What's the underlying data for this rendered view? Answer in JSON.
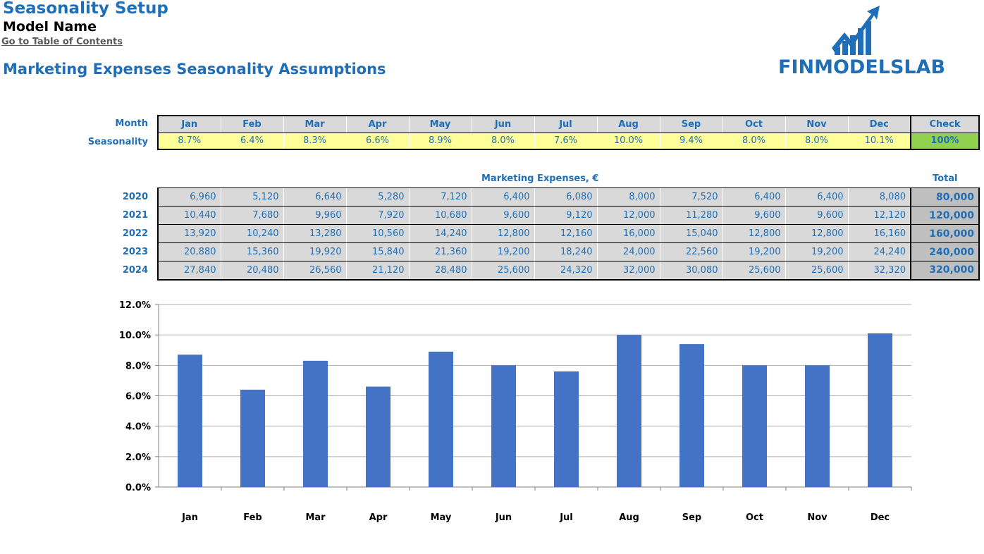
{
  "header": {
    "title": "Seasonality Setup",
    "model_name": "Model Name",
    "toc_link": "Go to Table of Contents",
    "section_title": "Marketing Expenses Seasonality Assumptions",
    "logo_text": "FINMODELSLAB"
  },
  "seasonality_table": {
    "month_label": "Month",
    "seasonality_label": "Seasonality",
    "months": [
      "Jan",
      "Feb",
      "Mar",
      "Apr",
      "May",
      "Jun",
      "Jul",
      "Aug",
      "Sep",
      "Oct",
      "Nov",
      "Dec"
    ],
    "values": [
      "8.7%",
      "6.4%",
      "8.3%",
      "6.6%",
      "8.9%",
      "8.0%",
      "7.6%",
      "10.0%",
      "9.4%",
      "8.0%",
      "8.0%",
      "10.1%"
    ],
    "check_label": "Check",
    "check_value": "100%"
  },
  "expenses_table": {
    "title": "Marketing Expenses, €",
    "total_label": "Total",
    "rows": [
      {
        "year": "2020",
        "values": [
          "6,960",
          "5,120",
          "6,640",
          "5,280",
          "7,120",
          "6,400",
          "6,080",
          "8,000",
          "7,520",
          "6,400",
          "6,400",
          "8,080"
        ],
        "total": "80,000"
      },
      {
        "year": "2021",
        "values": [
          "10,440",
          "7,680",
          "9,960",
          "7,920",
          "10,680",
          "9,600",
          "9,120",
          "12,000",
          "11,280",
          "9,600",
          "9,600",
          "12,120"
        ],
        "total": "120,000"
      },
      {
        "year": "2022",
        "values": [
          "13,920",
          "10,240",
          "13,280",
          "10,560",
          "14,240",
          "12,800",
          "12,160",
          "16,000",
          "15,040",
          "12,800",
          "12,800",
          "16,160"
        ],
        "total": "160,000"
      },
      {
        "year": "2023",
        "values": [
          "20,880",
          "15,360",
          "19,920",
          "15,840",
          "21,360",
          "19,200",
          "18,240",
          "24,000",
          "22,560",
          "19,200",
          "19,200",
          "24,240"
        ],
        "total": "240,000"
      },
      {
        "year": "2024",
        "values": [
          "27,840",
          "20,480",
          "26,560",
          "21,120",
          "28,480",
          "25,600",
          "24,320",
          "32,000",
          "30,080",
          "25,600",
          "25,600",
          "32,320"
        ],
        "total": "320,000"
      }
    ]
  },
  "colors": {
    "accent": "#1f6fb8",
    "bar": "#4472c4",
    "seasonality_fill": "#ffff99",
    "check_fill": "#92d050"
  },
  "chart_data": {
    "type": "bar",
    "categories": [
      "Jan",
      "Feb",
      "Mar",
      "Apr",
      "May",
      "Jun",
      "Jul",
      "Aug",
      "Sep",
      "Oct",
      "Nov",
      "Dec"
    ],
    "values": [
      0.087,
      0.064,
      0.083,
      0.066,
      0.089,
      0.08,
      0.076,
      0.1,
      0.094,
      0.08,
      0.08,
      0.101
    ],
    "ylim": [
      0,
      0.12
    ],
    "yticks": [
      "0.0%",
      "2.0%",
      "4.0%",
      "6.0%",
      "8.0%",
      "10.0%",
      "12.0%"
    ],
    "grid": true,
    "legend": "none"
  }
}
